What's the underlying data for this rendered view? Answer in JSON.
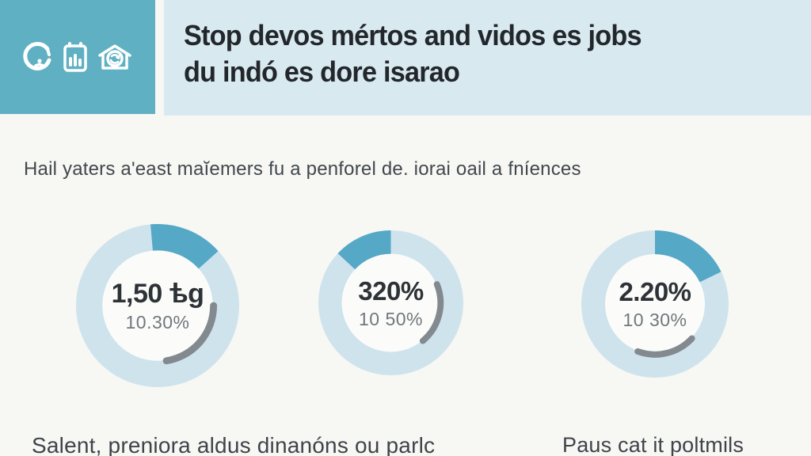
{
  "colors": {
    "teal_box": "#5fb0c2",
    "header_bg": "#d9e9f0",
    "page_bg": "#f7f7f4",
    "ring": "#cfe3ed",
    "accent": "#55a8c6",
    "gray_arc": "#82898f",
    "hole": "#fbfcf9"
  },
  "header": {
    "title_line1": "Stop devos mértos and vidos es jobs",
    "title_line2": "du indó es dore isarao",
    "icons": [
      "circular-arrow-icon",
      "clipboard-chart-icon",
      "house-cycle-icon"
    ]
  },
  "subtitle": "Hail yaters a'east maĭemers fu a penforel de. iorai oail a fníences",
  "chart_data": [
    {
      "type": "pie",
      "subtype": "donut-gauge",
      "center_value": "1,50 ѣg",
      "center_sub_value": "10.30%",
      "accent_arc_deg": [
        -5,
        48
      ],
      "gray_arc_deg": [
        90,
        171
      ],
      "legend_position": "none",
      "notes": "light ring with teal accent segment at top and thin gray arc lower-right"
    },
    {
      "type": "pie",
      "subtype": "donut-gauge",
      "center_value": "320%",
      "center_sub_value": "10 50%",
      "accent_arc_deg": [
        313,
        360
      ],
      "gray_arc_deg": [
        68,
        140
      ],
      "legend_position": "none",
      "notes": "teal accent segment at top-left, thin gray arc at right"
    },
    {
      "type": "pie",
      "subtype": "donut-gauge",
      "center_value": "2.20%",
      "center_sub_value": "10 30%",
      "accent_arc_deg": [
        0,
        64
      ],
      "gray_arc_deg": [
        133,
        200
      ],
      "legend_position": "none",
      "notes": "teal accent segment top-right, thin gray arc at bottom"
    }
  ],
  "footer": {
    "left": "Salent, preniora aldus dinanóns ou parlc",
    "right": "Paus cat it poltmils"
  }
}
